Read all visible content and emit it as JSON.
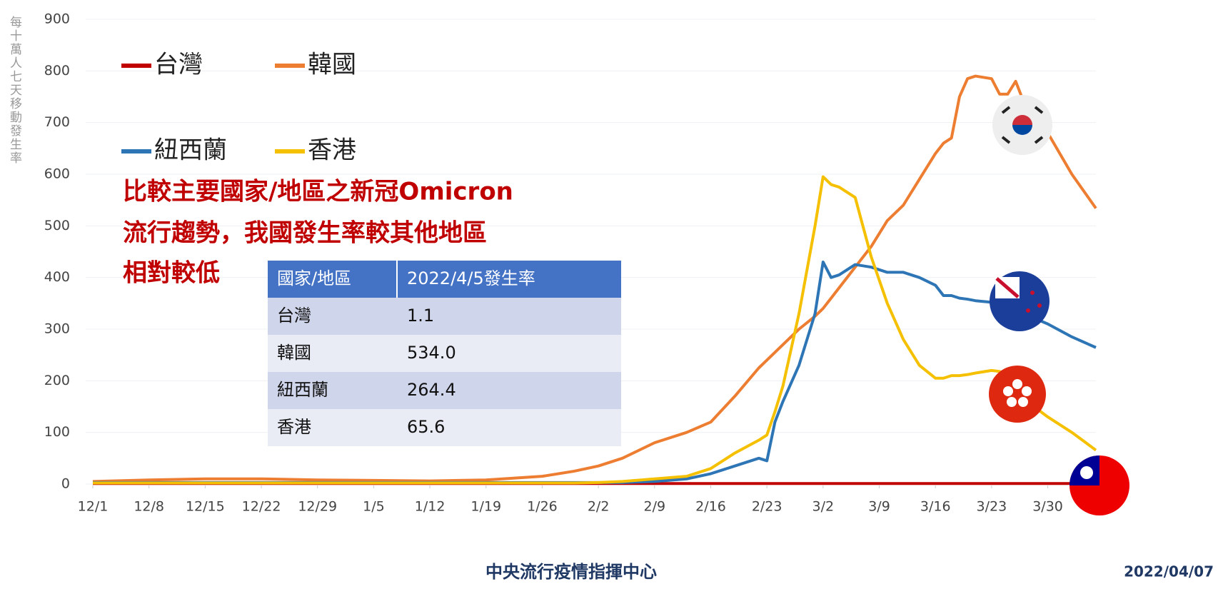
{
  "chart_data": {
    "type": "line",
    "y_label": "每十萬人七天移動發生率",
    "annotation": [
      "比較主要國家/地區之新冠Omicron",
      "流行趨勢，我國發生率較其他地區",
      "相對較低"
    ],
    "source": "中央流行疫情指揮中心",
    "date": "2022/04/07",
    "x": [
      0,
      7,
      14,
      21,
      28,
      35,
      42,
      49,
      56,
      60,
      63,
      66,
      70,
      74,
      77,
      80,
      83,
      84,
      85,
      86,
      88,
      90,
      91,
      92,
      93,
      95,
      97,
      99,
      101,
      103,
      105,
      106,
      107,
      108,
      109,
      110,
      112,
      113,
      114,
      115,
      116,
      119,
      122,
      125
    ],
    "xlim": [
      0,
      125
    ],
    "xticks": [
      {
        "value": 0,
        "label": "12/1"
      },
      {
        "value": 7,
        "label": "12/8"
      },
      {
        "value": 14,
        "label": "12/15"
      },
      {
        "value": 21,
        "label": "12/22"
      },
      {
        "value": 28,
        "label": "12/29"
      },
      {
        "value": 35,
        "label": "1/5"
      },
      {
        "value": 42,
        "label": "1/12"
      },
      {
        "value": 49,
        "label": "1/19"
      },
      {
        "value": 56,
        "label": "1/26"
      },
      {
        "value": 63,
        "label": "2/2"
      },
      {
        "value": 70,
        "label": "2/9"
      },
      {
        "value": 77,
        "label": "2/16"
      },
      {
        "value": 84,
        "label": "2/23"
      },
      {
        "value": 91,
        "label": "3/2"
      },
      {
        "value": 98,
        "label": "3/9"
      },
      {
        "value": 105,
        "label": "3/16"
      },
      {
        "value": 112,
        "label": "3/23"
      },
      {
        "value": 119,
        "label": "3/30"
      }
    ],
    "ylim": [
      0,
      900
    ],
    "yticks": [
      0,
      100,
      200,
      300,
      400,
      500,
      600,
      700,
      800,
      900
    ],
    "grid": true,
    "series": [
      {
        "name": "台灣",
        "color": "#c00000",
        "values": [
          1,
          1,
          1,
          1,
          1,
          1,
          1,
          1,
          1,
          1,
          1,
          1,
          1,
          1,
          1,
          1,
          1,
          1,
          1,
          1,
          1,
          1,
          1,
          1,
          1,
          1,
          1,
          1,
          1,
          1,
          1,
          1,
          1,
          1,
          1,
          1,
          1,
          1,
          1,
          1,
          1,
          1,
          1,
          1.1
        ]
      },
      {
        "name": "韓國",
        "color": "#ed7d31",
        "values": [
          5,
          8,
          10,
          10,
          8,
          7,
          6,
          8,
          15,
          25,
          35,
          50,
          80,
          100,
          120,
          170,
          225,
          240,
          255,
          270,
          300,
          325,
          340,
          360,
          380,
          420,
          460,
          510,
          540,
          590,
          640,
          660,
          670,
          750,
          785,
          790,
          785,
          755,
          755,
          780,
          740,
          680,
          600,
          534
        ]
      },
      {
        "name": "紐西蘭",
        "color": "#2e75b6",
        "values": [
          3,
          3,
          3,
          3,
          3,
          3,
          3,
          3,
          3,
          3,
          3,
          3,
          5,
          10,
          20,
          35,
          50,
          45,
          120,
          160,
          230,
          330,
          430,
          400,
          405,
          425,
          420,
          410,
          410,
          400,
          385,
          365,
          365,
          360,
          358,
          355,
          352,
          350,
          350,
          340,
          330,
          310,
          285,
          264.4
        ]
      },
      {
        "name": "香港",
        "color": "#f5c000",
        "values": [
          2,
          2,
          2,
          2,
          2,
          2,
          2,
          2,
          2,
          2,
          3,
          5,
          10,
          15,
          30,
          60,
          85,
          95,
          140,
          190,
          330,
          500,
          595,
          580,
          575,
          555,
          440,
          350,
          280,
          230,
          205,
          205,
          210,
          210,
          212,
          215,
          220,
          218,
          210,
          190,
          165,
          130,
          100,
          65.6
        ]
      }
    ]
  },
  "table": {
    "header": [
      "國家/地區",
      "2022/4/5發生率"
    ],
    "rows": [
      [
        "台灣",
        "1.1"
      ],
      [
        "韓國",
        "534.0"
      ],
      [
        "紐西蘭",
        "264.4"
      ],
      [
        "香港",
        "65.6"
      ]
    ]
  }
}
